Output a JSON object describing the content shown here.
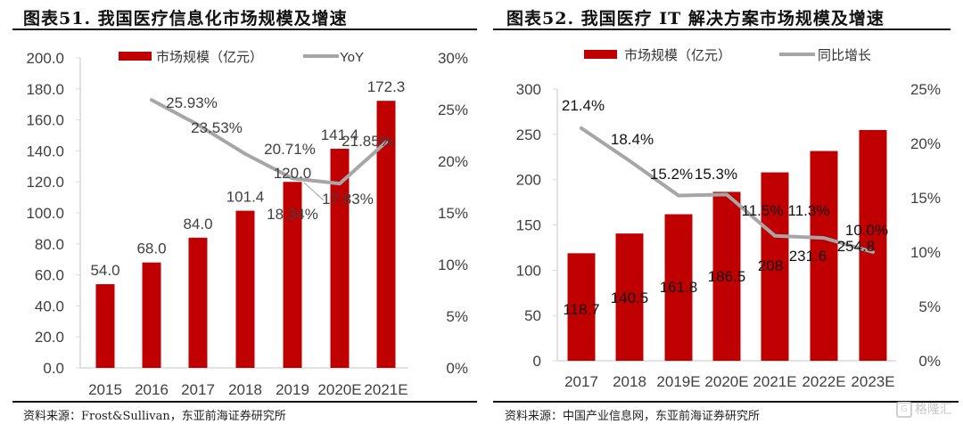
{
  "chart_data": [
    {
      "type": "bar+line",
      "title": "图表51. 我国医疗信息化市场规模及增速",
      "categories": [
        "2015",
        "2016",
        "2017",
        "2018",
        "2019",
        "2020E",
        "2021E"
      ],
      "series": [
        {
          "name": "市场规模（亿元）",
          "type": "bar",
          "axis": "left",
          "values": [
            54.0,
            68.0,
            84.0,
            101.4,
            120.0,
            141.4,
            172.3
          ],
          "labels": [
            "54.0",
            "68.0",
            "84.0",
            "101.4",
            "120.0",
            "141.4",
            "172.3"
          ],
          "color": "#c00000"
        },
        {
          "name": "YoY",
          "type": "line",
          "axis": "right",
          "values": [
            null,
            25.93,
            23.53,
            20.71,
            18.34,
            17.83,
            21.85
          ],
          "labels": [
            "",
            "25.93%",
            "23.53%",
            "20.71%",
            "18.34%",
            "17.83%",
            "21.85%"
          ],
          "color": "#a6a6a6"
        }
      ],
      "left_axis": {
        "ylim": [
          0,
          200
        ],
        "ticks": [
          "0.0",
          "20.0",
          "40.0",
          "60.0",
          "80.0",
          "100.0",
          "120.0",
          "140.0",
          "160.0",
          "180.0",
          "200.0"
        ]
      },
      "right_axis": {
        "ylim": [
          0,
          30
        ],
        "ticks": [
          "0%",
          "5%",
          "10%",
          "15%",
          "20%",
          "25%",
          "30%"
        ]
      },
      "legend": "top",
      "grid": false,
      "source": "资料来源：Frost&Sullivan，东亚前海证券研究所"
    },
    {
      "type": "bar+line",
      "title": "图表52. 我国医疗 IT 解决方案市场规模及增速",
      "categories": [
        "2017",
        "2018",
        "2019E",
        "2020E",
        "2021E",
        "2022E",
        "2023E"
      ],
      "series": [
        {
          "name": "市场规模（亿元）",
          "type": "bar",
          "axis": "left",
          "values": [
            118.7,
            140.5,
            161.8,
            186.5,
            208,
            231.6,
            254.8
          ],
          "labels": [
            "118.7",
            "140.5",
            "161.8",
            "186.5",
            "208",
            "231.6",
            "254.8"
          ],
          "color": "#c00000"
        },
        {
          "name": "同比增长",
          "type": "line",
          "axis": "right",
          "values": [
            21.4,
            18.4,
            15.2,
            15.3,
            11.5,
            11.3,
            10.0
          ],
          "labels": [
            "21.4%",
            "18.4%",
            "15.2%",
            "15.3%",
            "11.5%",
            "11.3%",
            "10.0%"
          ],
          "color": "#a6a6a6"
        }
      ],
      "left_axis": {
        "ylim": [
          0,
          300
        ],
        "ticks": [
          "0",
          "50",
          "100",
          "150",
          "200",
          "250",
          "300"
        ]
      },
      "right_axis": {
        "ylim": [
          0,
          25
        ],
        "ticks": [
          "0%",
          "5%",
          "10%",
          "15%",
          "20%",
          "25%"
        ]
      },
      "legend": "top",
      "grid": false,
      "source": "资料来源：中国产业信息网，东亚前海证券研究所"
    }
  ],
  "watermark": {
    "text": "格隆汇",
    "icon": "logo-g-icon"
  }
}
